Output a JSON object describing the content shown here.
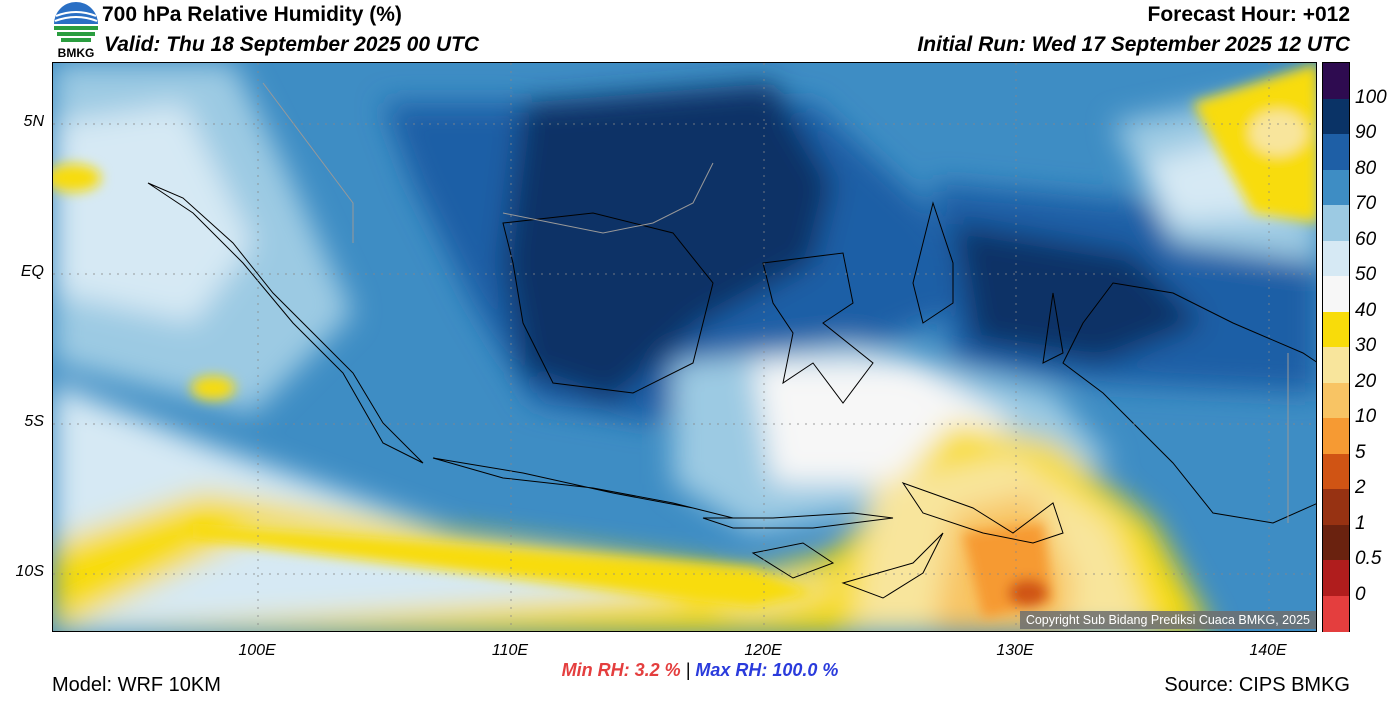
{
  "header": {
    "title": "700 hPa Relative Humidity (%)",
    "valid": "Valid: Thu 18 September 2025 00 UTC",
    "forecast_hour": "Forecast Hour: +012",
    "initial_run": "Initial Run: Wed 17 September 2025 12 UTC"
  },
  "logo": {
    "text": "BMKG"
  },
  "axes": {
    "lat_labels": [
      "5N",
      "EQ",
      "5S",
      "10S"
    ],
    "lon_labels": [
      "100E",
      "110E",
      "120E",
      "130E",
      "140E"
    ]
  },
  "colorbar": {
    "labels": [
      "100",
      "90",
      "80",
      "70",
      "60",
      "50",
      "40",
      "30",
      "20",
      "10",
      "5",
      "2",
      "1",
      "0.5",
      "0"
    ],
    "colors": [
      "#2e0b50",
      "#0a3366",
      "#1e5fa6",
      "#3e8dc4",
      "#9ccae3",
      "#d6e9f4",
      "#f7f7f7",
      "#f8dc0a",
      "#f8e59c",
      "#f8c464",
      "#f69a33",
      "#d05414",
      "#973212",
      "#6a220f",
      "#b01d1d",
      "#e43e3e"
    ]
  },
  "stats": {
    "min_label": "Min RH:",
    "min_value": "3.2 %",
    "max_label": "Max RH:",
    "max_value": "100.0 %"
  },
  "footer": {
    "model": "Model: WRF 10KM",
    "source": "Source: CIPS BMKG",
    "copyright": "Copyright Sub Bidang Prediksi Cuaca BMKG, 2025"
  }
}
